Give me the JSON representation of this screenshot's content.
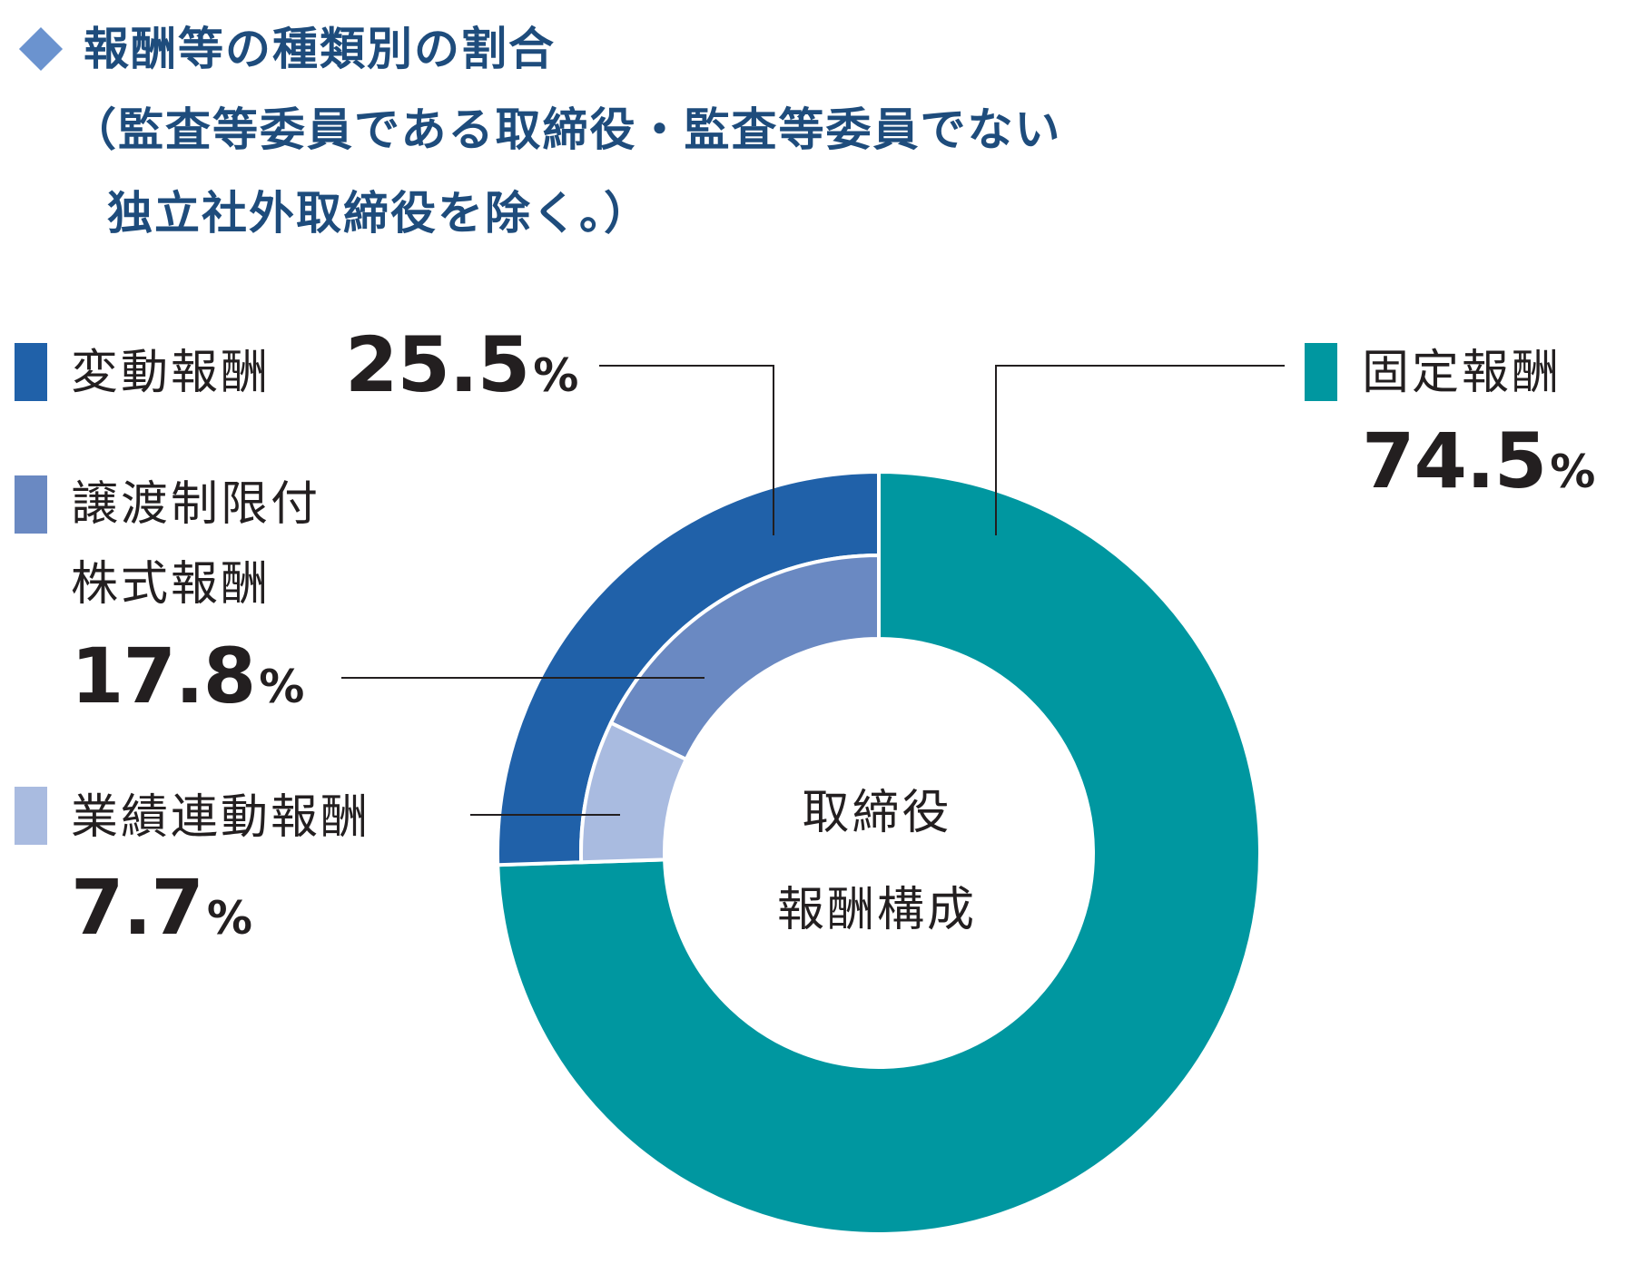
{
  "title": {
    "line1": "報酬等の種類別の割合",
    "line2": "（監査等委員である取締役・監査等委員でない",
    "line3": "独立社外取締役を除く。）"
  },
  "center": {
    "line1": "取締役",
    "line2": "報酬構成"
  },
  "colors": {
    "fixed": "#0097a0",
    "variable": "#2061a9",
    "stock": "#6a89c2",
    "performance": "#a9bbe0",
    "title": "#1e4c7c",
    "diamond": "#6b93cf"
  },
  "legend": {
    "fixed": {
      "label": "固定報酬",
      "value": "74.5",
      "unit": "%"
    },
    "variable": {
      "label": "変動報酬",
      "value": "25.5",
      "unit": "%"
    },
    "stock": {
      "label1": "譲渡制限付",
      "label2": "株式報酬",
      "value": "17.8",
      "unit": "%"
    },
    "performance": {
      "label": "業績連動報酬",
      "value": "7.7",
      "unit": "%"
    }
  },
  "chart_data": {
    "type": "pie",
    "title": "報酬等の種類別の割合",
    "subtitle": "（監査等委員である取締役・監査等委員でない独立社外取締役を除く。）",
    "outer_ring": [
      {
        "name": "固定報酬",
        "value": 74.5
      },
      {
        "name": "変動報酬",
        "value": 25.5
      }
    ],
    "inner_ring": [
      {
        "name": "譲渡制限付株式報酬",
        "value": 17.8
      },
      {
        "name": "業績連動報酬",
        "value": 7.7
      }
    ],
    "unit": "%"
  }
}
